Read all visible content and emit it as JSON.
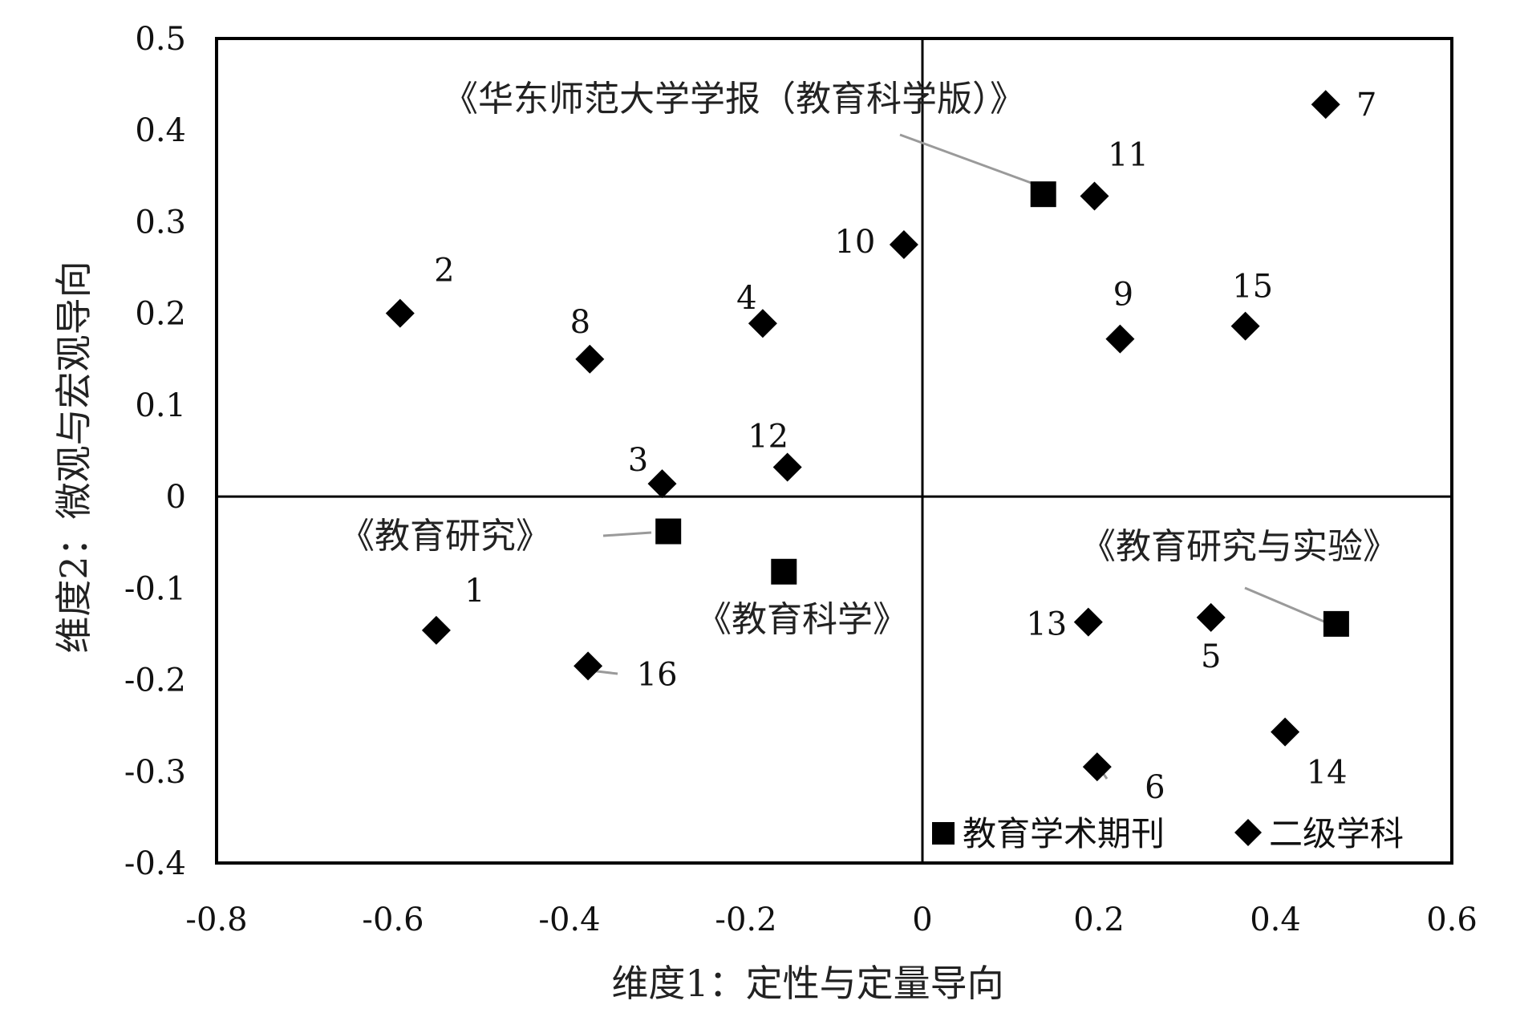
{
  "chart_data": {
    "type": "scatter",
    "xlabel": "维度1：定性与定量导向",
    "ylabel": "维度2：微观与宏观导向",
    "xlim": [
      -0.8,
      0.6
    ],
    "ylim": [
      -0.4,
      0.5
    ],
    "x_ticks": [
      "-0.8",
      "-0.6",
      "-0.4",
      "-0.2",
      "0",
      "0.2",
      "0.4",
      "0.6"
    ],
    "y_ticks": [
      "0.5",
      "0.4",
      "0.3",
      "0.2",
      "0.1",
      "0",
      "-0.1",
      "-0.2",
      "-0.3",
      "-0.4"
    ],
    "quadrant_lines": {
      "x": 0,
      "y": 0
    },
    "legend_position": "bottom-right",
    "series": [
      {
        "name": "教育学术期刊",
        "marker": "square",
        "color": "#000000",
        "points": [
          {
            "label": "《华东师范大学学报（教育科学版）》",
            "x": 0.137,
            "y": 0.33
          },
          {
            "label": "《教育研究》",
            "x": -0.288,
            "y": -0.038
          },
          {
            "label": "《教育科学》",
            "x": -0.157,
            "y": -0.082
          },
          {
            "label": "《教育研究与实验》",
            "x": 0.469,
            "y": -0.139
          }
        ]
      },
      {
        "name": "二级学科",
        "marker": "diamond",
        "color": "#000000",
        "points": [
          {
            "label": "1",
            "x": -0.551,
            "y": -0.146
          },
          {
            "label": "2",
            "x": -0.592,
            "y": 0.2
          },
          {
            "label": "3",
            "x": -0.295,
            "y": 0.014
          },
          {
            "label": "4",
            "x": -0.181,
            "y": 0.189
          },
          {
            "label": "5",
            "x": 0.327,
            "y": -0.132
          },
          {
            "label": "6",
            "x": 0.198,
            "y": -0.295
          },
          {
            "label": "7",
            "x": 0.457,
            "y": 0.428
          },
          {
            "label": "8",
            "x": -0.377,
            "y": 0.15
          },
          {
            "label": "9",
            "x": 0.224,
            "y": 0.172
          },
          {
            "label": "10",
            "x": -0.021,
            "y": 0.275
          },
          {
            "label": "11",
            "x": 0.195,
            "y": 0.328
          },
          {
            "label": "12",
            "x": -0.153,
            "y": 0.032
          },
          {
            "label": "13",
            "x": 0.188,
            "y": -0.137
          },
          {
            "label": "14",
            "x": 0.411,
            "y": -0.257
          },
          {
            "label": "15",
            "x": 0.366,
            "y": 0.186
          },
          {
            "label": "16",
            "x": -0.379,
            "y": -0.185
          }
        ]
      }
    ]
  }
}
